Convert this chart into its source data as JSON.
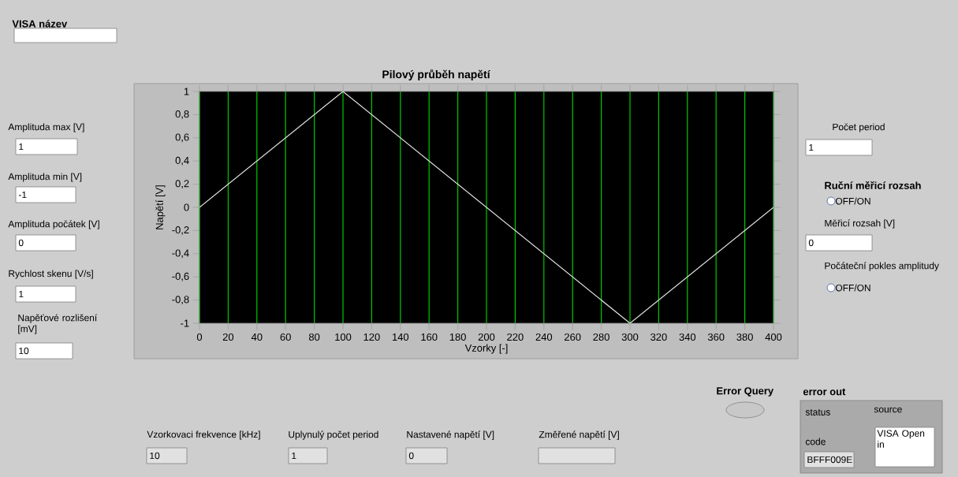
{
  "chart_data": {
    "type": "line",
    "title": "Pilový průběh napětí",
    "xlabel": "Vzorky [-]",
    "ylabel": "Napětí [V]",
    "series": [
      {
        "color": "#e0e0e0",
        "x": [
          0,
          100,
          300,
          400
        ],
        "values": [
          0,
          1,
          -1,
          0
        ]
      }
    ],
    "xlim": [
      0,
      400
    ],
    "ylim": [
      -1,
      1
    ],
    "xticks": [
      0,
      20,
      40,
      60,
      80,
      100,
      120,
      140,
      160,
      180,
      200,
      220,
      240,
      260,
      280,
      300,
      320,
      340,
      360,
      380,
      400
    ],
    "yticks": [
      -1,
      {
        "value": -0.8,
        "label": "-0,8"
      },
      {
        "value": -0.6,
        "label": "-0,6"
      },
      {
        "value": -0.4,
        "label": "-0,4"
      },
      {
        "value": -0.2,
        "label": "-0,2"
      },
      0,
      {
        "value": 0.2,
        "label": "0,2"
      },
      {
        "value": 0.4,
        "label": "0,4"
      },
      {
        "value": 0.6,
        "label": "0,6"
      },
      {
        "value": 0.8,
        "label": "0,8"
      },
      1
    ],
    "grid": "x",
    "annotations": [
      "VISA název",
      "Amplituda max [V]",
      "1",
      "Amplituda min [V]",
      "-1",
      "Amplituda počátek [V]",
      "0",
      "Rychlost skenu [V/s]",
      "1",
      "Napěťové rozlišení [mV]",
      "10",
      "Počet period",
      "1",
      "Ruční měřicí rozsah",
      "OFF/ON",
      "Měřicí rozsah [V]",
      "0",
      "Počáteční pokles amplitudy",
      "OFF/ON",
      "Error Query",
      "error out",
      "status",
      "code",
      "BFFF009E",
      "source",
      "VISA Open in",
      "Vzorkovaci frekvence [kHz]",
      "10",
      "Uplynulý počet period",
      "1",
      "Nastavené napětí [V]",
      "0",
      "Změřené napětí [V]"
    ]
  }
}
